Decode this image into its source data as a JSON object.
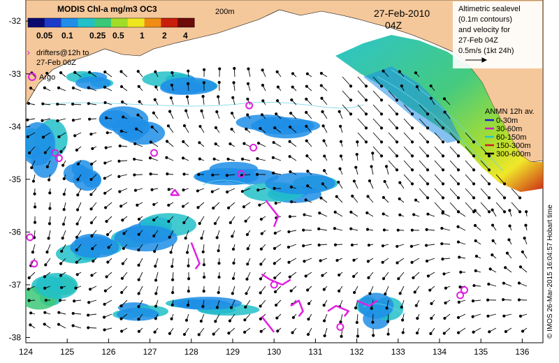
{
  "colorbar": {
    "title": "MODIS Chl-a mg/m3 OC3",
    "labels": [
      "0.05",
      "0.1",
      "0.25",
      "0.5",
      "1",
      "2",
      "4"
    ],
    "colors": [
      "#0a0a6e",
      "#1c3cc8",
      "#1f8ee6",
      "#22c0c8",
      "#3cc878",
      "#a0dc28",
      "#f0e61e",
      "#f08c14",
      "#c81e0a",
      "#6e0a0a"
    ]
  },
  "contour_label": "200m",
  "date": "27-Feb-2010",
  "time": "04Z",
  "drifters_label_1": "drifters@12h to",
  "drifters_label_2": "27-Feb 06Z",
  "argo_label": "Argo",
  "altimetry": {
    "line1": "Altimetric sealevel",
    "line2": "(0.1m contours)",
    "line3": "and velocity for",
    "line4": "27-Feb 04Z",
    "line5": "0.5m/s (1kt 24h)"
  },
  "anmn": {
    "title": "ANMN 12h av.",
    "items": [
      {
        "label": "0-30m",
        "color": "#1c1cc8"
      },
      {
        "label": "30-60m",
        "color": "#c81ec8"
      },
      {
        "label": "60-150m",
        "color": "#1ec8c8"
      },
      {
        "label": "150-300m",
        "color": "#c81e1e"
      },
      {
        "label": "300-600m",
        "color": "#000000"
      }
    ]
  },
  "credit": "© IMOS 26-Mar-2015 16:04:57 Hobart time",
  "axes": {
    "x_ticks": [
      "124",
      "125",
      "126",
      "127",
      "128",
      "129",
      "130",
      "131",
      "132",
      "133",
      "134",
      "135",
      "136"
    ],
    "y_ticks": [
      "-32",
      "-33",
      "-34",
      "-35",
      "-36",
      "-37",
      "-38"
    ]
  },
  "map_data": {
    "lon_range": [
      124,
      136.5
    ],
    "lat_range": [
      -38.1,
      -31.6
    ],
    "land_color": "#f5c89b",
    "argo_floats": [
      [
        124.8,
        -34.6
      ],
      [
        124.7,
        -34.5
      ],
      [
        124.1,
        -36.1
      ],
      [
        124.2,
        -36.6
      ],
      [
        127.1,
        -34.5
      ],
      [
        129.4,
        -33.6
      ],
      [
        129.5,
        -34.4
      ],
      [
        129.2,
        -34.9
      ],
      [
        130.0,
        -37.0
      ],
      [
        131.6,
        -37.8
      ],
      [
        134.5,
        -37.2
      ],
      [
        134.6,
        -37.1
      ]
    ],
    "drifter_tracks": [
      [
        [
          127.5,
          -35.3
        ],
        [
          127.6,
          -35.2
        ],
        [
          127.7,
          -35.3
        ],
        [
          127.5,
          -35.3
        ]
      ],
      [
        [
          129.8,
          -35.4
        ],
        [
          129.9,
          -35.5
        ],
        [
          130.1,
          -35.7
        ],
        [
          130.0,
          -35.9
        ]
      ],
      [
        [
          128.0,
          -36.2
        ],
        [
          128.1,
          -36.4
        ],
        [
          128.2,
          -36.6
        ],
        [
          128.1,
          -36.7
        ]
      ],
      [
        [
          129.7,
          -36.8
        ],
        [
          129.9,
          -36.9
        ],
        [
          130.2,
          -37.0
        ],
        [
          130.4,
          -36.9
        ]
      ],
      [
        [
          130.4,
          -37.4
        ],
        [
          130.6,
          -37.3
        ],
        [
          130.7,
          -37.5
        ],
        [
          130.6,
          -37.6
        ]
      ],
      [
        [
          131.3,
          -37.5
        ],
        [
          131.5,
          -37.4
        ],
        [
          131.8,
          -37.5
        ],
        [
          131.7,
          -37.6
        ]
      ],
      [
        [
          129.7,
          -37.6
        ],
        [
          129.9,
          -37.8
        ],
        [
          130.0,
          -37.9
        ]
      ],
      [
        [
          132.0,
          -37.3
        ],
        [
          132.3,
          -37.4
        ],
        [
          132.5,
          -37.3
        ]
      ]
    ],
    "chl_patches": [
      {
        "lon": 124.6,
        "lat": -37.1,
        "rx": 0.6,
        "ry": 0.3,
        "c": 4
      },
      {
        "lon": 124.4,
        "lat": -34.4,
        "rx": 0.5,
        "ry": 0.5,
        "c": 3
      },
      {
        "lon": 125.4,
        "lat": -34.9,
        "rx": 0.4,
        "ry": 0.25,
        "c": 2
      },
      {
        "lon": 126.5,
        "lat": -34.0,
        "rx": 0.7,
        "ry": 0.3,
        "c": 2
      },
      {
        "lon": 127.8,
        "lat": -33.2,
        "rx": 0.8,
        "ry": 0.2,
        "c": 3
      },
      {
        "lon": 129.0,
        "lat": -34.9,
        "rx": 0.9,
        "ry": 0.2,
        "c": 2
      },
      {
        "lon": 130.5,
        "lat": -35.2,
        "rx": 1.0,
        "ry": 0.25,
        "c": 3
      },
      {
        "lon": 127.0,
        "lat": -36.0,
        "rx": 0.9,
        "ry": 0.3,
        "c": 3
      },
      {
        "lon": 125.6,
        "lat": -36.3,
        "rx": 0.7,
        "ry": 0.25,
        "c": 3
      },
      {
        "lon": 132.5,
        "lat": -37.5,
        "rx": 0.5,
        "ry": 0.3,
        "c": 3
      },
      {
        "lon": 125.6,
        "lat": -33.1,
        "rx": 0.5,
        "ry": 0.15,
        "c": 3
      },
      {
        "lon": 128.4,
        "lat": -37.4,
        "rx": 1.0,
        "ry": 0.15,
        "c": 3
      },
      {
        "lon": 130.2,
        "lat": -34.0,
        "rx": 0.9,
        "ry": 0.2,
        "c": 2
      },
      {
        "lon": 126.7,
        "lat": -37.5,
        "rx": 0.6,
        "ry": 0.15,
        "c": 3
      }
    ]
  }
}
